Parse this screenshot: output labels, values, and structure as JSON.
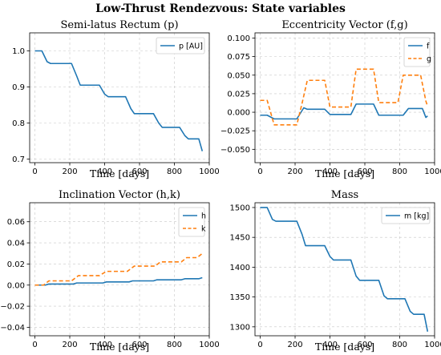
{
  "figure_title": "Low-Thrust Rendezvous: State variables",
  "colors": {
    "blue": "#1f77b4",
    "orange": "#ff7f0e"
  },
  "chart_data": [
    {
      "type": "line",
      "title": "Semi-latus Rectum (p)",
      "xlabel": "Time [days]",
      "ylabel": "",
      "xlim": [
        -30,
        1000
      ],
      "ylim": [
        0.69,
        1.05
      ],
      "xticks": [
        0,
        200,
        400,
        600,
        800,
        1000
      ],
      "yticks": [
        0.7,
        0.8,
        0.9,
        1.0
      ],
      "ytick_labels": [
        "0.7",
        "0.8",
        "0.9",
        "1.0"
      ],
      "legend": "top-right",
      "grid": true,
      "series": [
        {
          "name": "p [AU]",
          "style": "solid",
          "color": "#1f77b4",
          "x": [
            0,
            40,
            70,
            90,
            210,
            240,
            260,
            370,
            400,
            420,
            520,
            550,
            570,
            680,
            710,
            730,
            830,
            860,
            880,
            940,
            960
          ],
          "y": [
            1.0,
            1.0,
            0.97,
            0.965,
            0.965,
            0.93,
            0.905,
            0.905,
            0.88,
            0.873,
            0.873,
            0.84,
            0.826,
            0.826,
            0.8,
            0.788,
            0.788,
            0.765,
            0.756,
            0.756,
            0.722
          ]
        }
      ]
    },
    {
      "type": "line",
      "title": "Eccentricity Vector (f,g)",
      "xlabel": "Time [days]",
      "ylabel": "",
      "xlim": [
        -30,
        1000
      ],
      "ylim": [
        -0.068,
        0.107
      ],
      "xticks": [
        0,
        200,
        400,
        600,
        800,
        1000
      ],
      "yticks": [
        -0.05,
        -0.025,
        0.0,
        0.025,
        0.05,
        0.075,
        0.1
      ],
      "ytick_labels": [
        "−0.050",
        "−0.025",
        "0.000",
        "0.025",
        "0.050",
        "0.075",
        "0.100"
      ],
      "legend": "top-right",
      "grid": true,
      "series": [
        {
          "name": "f",
          "style": "solid",
          "color": "#1f77b4",
          "x": [
            0,
            40,
            80,
            210,
            250,
            270,
            370,
            400,
            520,
            550,
            650,
            680,
            820,
            850,
            930,
            950,
            960
          ],
          "y": [
            -0.004,
            -0.004,
            -0.009,
            -0.009,
            0.006,
            0.004,
            0.004,
            -0.003,
            -0.003,
            0.011,
            0.011,
            -0.004,
            -0.004,
            0.005,
            0.005,
            -0.007,
            -0.005
          ]
        },
        {
          "name": "g",
          "style": "dashed",
          "color": "#ff7f0e",
          "x": [
            0,
            40,
            80,
            210,
            240,
            270,
            370,
            400,
            520,
            550,
            650,
            680,
            790,
            820,
            920,
            950,
            960
          ],
          "y": [
            0.016,
            0.016,
            -0.017,
            -0.017,
            0.012,
            0.043,
            0.043,
            0.007,
            0.007,
            0.058,
            0.058,
            0.013,
            0.013,
            0.05,
            0.05,
            0.015,
            0.008
          ]
        }
      ]
    },
    {
      "type": "line",
      "title": "Inclination Vector (h,k)",
      "xlabel": "Time [days]",
      "ylabel": "",
      "xlim": [
        -30,
        1000
      ],
      "ylim": [
        -0.048,
        0.078
      ],
      "xticks": [
        0,
        200,
        400,
        600,
        800,
        1000
      ],
      "yticks": [
        -0.04,
        -0.02,
        0.0,
        0.02,
        0.04,
        0.06
      ],
      "ytick_labels": [
        "−0.04",
        "−0.02",
        "0.00",
        "0.02",
        "0.04",
        "0.06"
      ],
      "legend": "top-right",
      "grid": true,
      "series": [
        {
          "name": "h",
          "style": "solid",
          "color": "#1f77b4",
          "x": [
            0,
            60,
            80,
            220,
            240,
            390,
            410,
            540,
            560,
            680,
            700,
            840,
            860,
            940,
            960
          ],
          "y": [
            0.0,
            0.0,
            0.001,
            0.001,
            0.002,
            0.002,
            0.003,
            0.003,
            0.004,
            0.004,
            0.005,
            0.005,
            0.006,
            0.006,
            0.007
          ]
        },
        {
          "name": "k",
          "style": "dashed",
          "color": "#ff7f0e",
          "x": [
            0,
            50,
            80,
            210,
            250,
            370,
            410,
            530,
            570,
            690,
            720,
            840,
            870,
            930,
            960
          ],
          "y": [
            0.0,
            0.0,
            0.004,
            0.004,
            0.009,
            0.009,
            0.013,
            0.013,
            0.018,
            0.018,
            0.022,
            0.022,
            0.026,
            0.026,
            0.03
          ]
        }
      ]
    },
    {
      "type": "line",
      "title": "Mass",
      "xlabel": "Time [days]",
      "ylabel": "",
      "xlim": [
        -30,
        1000
      ],
      "ylim": [
        1285,
        1508
      ],
      "xticks": [
        0,
        200,
        400,
        600,
        800,
        1000
      ],
      "yticks": [
        1300,
        1350,
        1400,
        1450,
        1500
      ],
      "ytick_labels": [
        "1300",
        "1350",
        "1400",
        "1450",
        "1500"
      ],
      "legend": "top-right",
      "grid": true,
      "series": [
        {
          "name": "m [kg]",
          "style": "solid",
          "color": "#1f77b4",
          "x": [
            0,
            40,
            70,
            90,
            210,
            240,
            260,
            370,
            400,
            420,
            520,
            550,
            570,
            680,
            710,
            730,
            830,
            860,
            880,
            940,
            960
          ],
          "y": [
            1500,
            1500,
            1480,
            1477,
            1477,
            1455,
            1436,
            1436,
            1418,
            1412,
            1412,
            1385,
            1378,
            1378,
            1352,
            1347,
            1347,
            1326,
            1321,
            1321,
            1292
          ]
        }
      ]
    }
  ]
}
